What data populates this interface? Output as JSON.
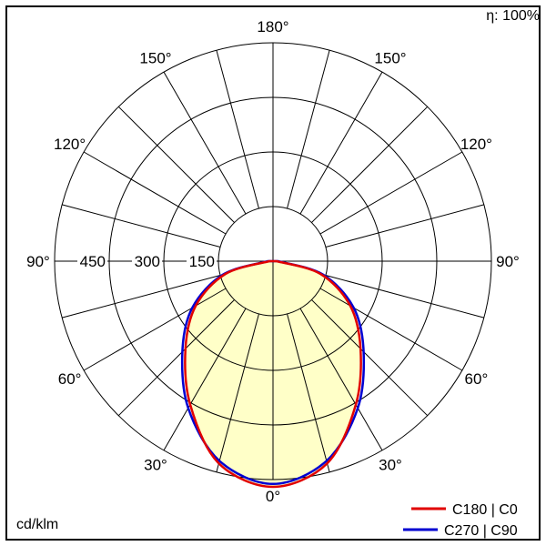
{
  "chart_data": {
    "type": "line",
    "subtype": "polar-photometric-distribution",
    "title": "",
    "angle_axis": {
      "unit": "deg",
      "zero_position": "bottom",
      "labels_deg": [
        0,
        30,
        60,
        90,
        120,
        150,
        180
      ],
      "grid_step_deg": 15
    },
    "radial_axis": {
      "unit": "cd/klm",
      "ticks": [
        150,
        300,
        450
      ],
      "max": 600
    },
    "gamma_deg": [
      0,
      15,
      30,
      45,
      60,
      75,
      90
    ],
    "series": [
      {
        "name": "C180 | C0",
        "color": "#e10000",
        "values_cd_per_klm": [
          620,
          575,
          455,
          340,
          245,
          135,
          10
        ]
      },
      {
        "name": "C270 | C90",
        "color": "#0000d2",
        "values_cd_per_klm": [
          612,
          568,
          466,
          352,
          256,
          142,
          14
        ]
      }
    ],
    "fill_color": "#ffffc8",
    "grid_color": "#000000",
    "legend_position": "bottom-right",
    "annotations": {
      "efficiency": "η: 100%",
      "unit_label": "cd/klm"
    }
  }
}
